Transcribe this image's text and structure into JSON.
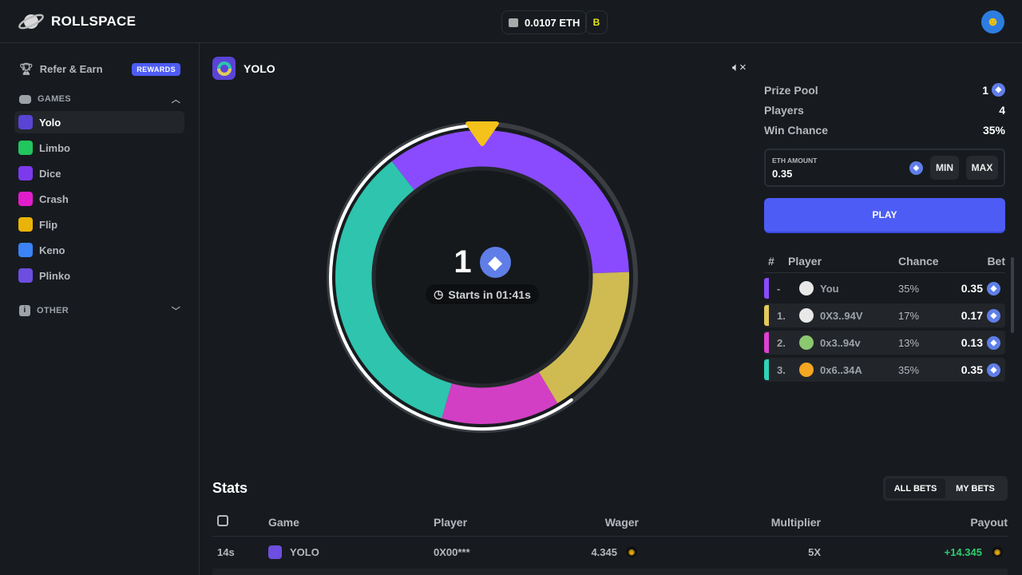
{
  "brand": {
    "name": "ROLLSPACE"
  },
  "header": {
    "balance": "0.0107 ETH",
    "icons": [
      "wallet-icon",
      "b-logo-icon",
      "avatar"
    ]
  },
  "sidebar": {
    "refer": {
      "label": "Refer & Earn",
      "badge": "REWARDS"
    },
    "games_label": "GAMES",
    "games": [
      {
        "label": "Yolo",
        "color": "#5a44d6"
      },
      {
        "label": "Limbo",
        "color": "#22c55e"
      },
      {
        "label": "Dice",
        "color": "#7c3aed"
      },
      {
        "label": "Crash",
        "color": "#e11dcb"
      },
      {
        "label": "Flip",
        "color": "#eab308"
      },
      {
        "label": "Keno",
        "color": "#3b82f6"
      },
      {
        "label": "Plinko",
        "color": "#6d4ee0"
      }
    ],
    "other_label": "OTHER"
  },
  "game": {
    "title": "YOLO",
    "pot": "1",
    "countdown": "Starts in 01:41s"
  },
  "wheel": {
    "segments": [
      {
        "player": "You",
        "chance": 35,
        "color": "#8a4bff"
      },
      {
        "player": "0X3..94V",
        "chance": 17,
        "color": "#cfbb52"
      },
      {
        "player": "0x3..94v",
        "chance": 13,
        "color": "#d23fc4"
      },
      {
        "player": "0x6..34A",
        "chance": 35,
        "color": "#2ec4ad"
      }
    ],
    "timer_progress": 0.6,
    "pointer_color": "#f5c21b"
  },
  "panel": {
    "prize_pool_label": "Prize Pool",
    "prize_pool": "1",
    "players_label": "Players",
    "players": "4",
    "win_chance_label": "Win Chance",
    "win_chance": "35%",
    "amount_label": "ETH AMOUNT",
    "amount": "0.35",
    "min": "MIN",
    "max": "MAX",
    "play": "PLAY",
    "headers": {
      "rank": "#",
      "player": "Player",
      "chance": "Chance",
      "bet": "Bet"
    },
    "rows": [
      {
        "rank": "-",
        "player": "You",
        "chance": "35%",
        "bet": "0.35",
        "color": "#8a4bff",
        "avatar": "#e8e8e8"
      },
      {
        "rank": "1.",
        "player": "0X3..94V",
        "chance": "17%",
        "bet": "0.17",
        "color": "#e3c95a",
        "avatar": "#e8e8e8"
      },
      {
        "rank": "2.",
        "player": "0x3..94v",
        "chance": "13%",
        "bet": "0.13",
        "color": "#e040d0",
        "avatar": "#8bc870"
      },
      {
        "rank": "3.",
        "player": "0x6..34A",
        "chance": "35%",
        "bet": "0.35",
        "color": "#2ed3b7",
        "avatar": "#f5a623"
      }
    ]
  },
  "stats": {
    "title": "Stats",
    "tabs": [
      "ALL BETS",
      "MY BETS"
    ],
    "headers": {
      "game": "Game",
      "player": "Player",
      "wager": "Wager",
      "multiplier": "Multiplier",
      "payout": "Payout"
    },
    "rows": [
      {
        "time": "14s",
        "game": "YOLO",
        "player": "0X00***",
        "wager": "4.345",
        "multiplier": "5X",
        "payout": "+14.345"
      }
    ],
    "payout_color": "#2ecc71"
  }
}
